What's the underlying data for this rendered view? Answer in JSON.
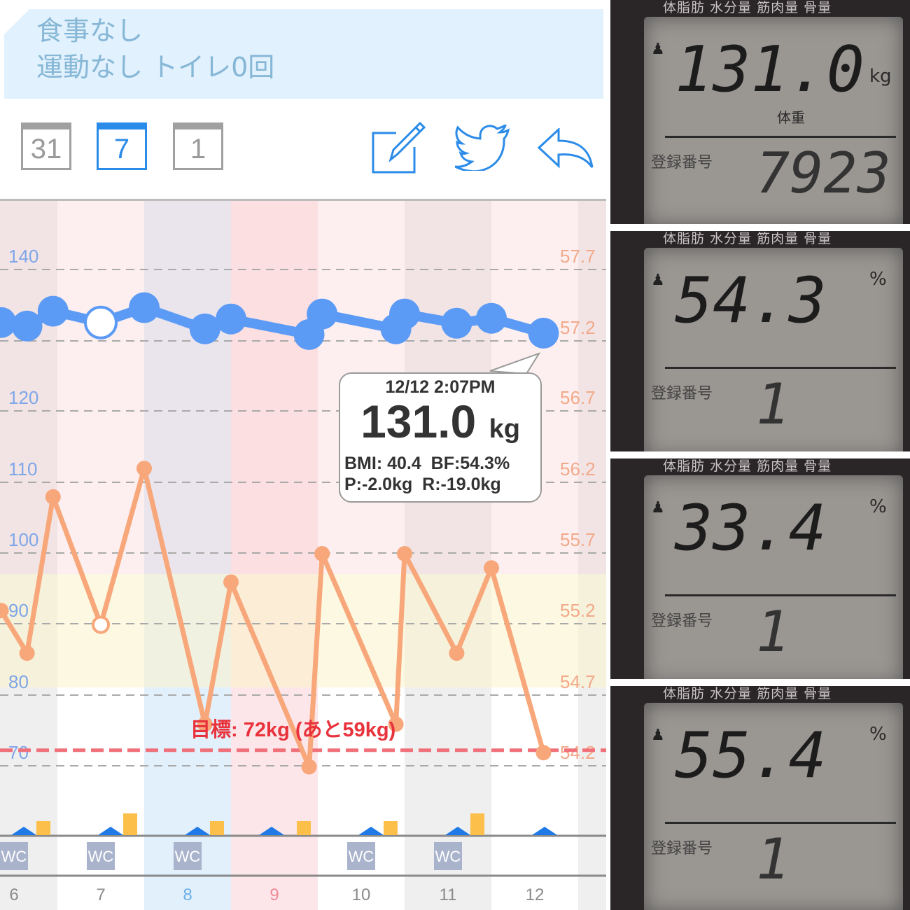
{
  "memo": {
    "line1": "食事なし",
    "line2": "運動なし トイレ0回"
  },
  "toolbar": {
    "calendars": [
      {
        "label": "31",
        "icon": "calendar-month-icon",
        "active": false
      },
      {
        "label": "7",
        "icon": "calendar-week-icon",
        "active": true
      },
      {
        "label": "1",
        "icon": "calendar-day-icon",
        "active": false
      }
    ],
    "actions": [
      "edit-icon",
      "twitter-icon",
      "reply-icon"
    ],
    "accent": "#2b8be8"
  },
  "chart_data": {
    "type": "line",
    "categories": [
      "6",
      "7",
      "8",
      "9",
      "10",
      "11",
      "12"
    ],
    "category_colors": [
      "#8a8a8a",
      "#8a8a8a",
      "#6aaee8",
      "#f08a96",
      "#8a8a8a",
      "#8a8a8a",
      "#8a8a8a"
    ],
    "left_axis": {
      "ticks": [
        "140",
        "120",
        "110",
        "100",
        "90",
        "80",
        "70"
      ],
      "range": [
        70,
        140
      ],
      "color": "#7fa6e8"
    },
    "right_axis": {
      "ticks": [
        "57.7",
        "57.2",
        "56.7",
        "56.2",
        "55.7",
        "55.2",
        "54.7",
        "54.2"
      ],
      "range": [
        54.2,
        57.7
      ],
      "color": "#f2a98a"
    },
    "series": [
      {
        "axis": "left",
        "color": "#5c9bf5",
        "x": [
          5.85,
          6.15,
          6.45,
          7.0,
          7.5,
          8.2,
          8.5,
          9.4,
          9.55,
          10.4,
          10.5,
          11.1,
          11.5,
          12.1
        ],
        "values": [
          132.5,
          132.0,
          134.1,
          132.5,
          134.6,
          131.6,
          133.0,
          130.8,
          133.7,
          131.6,
          133.7,
          132.4,
          133.1,
          131.0
        ],
        "open_index": 3
      },
      {
        "axis": "right",
        "color": "#f7a77a",
        "x": [
          5.85,
          6.15,
          6.45,
          7.0,
          7.5,
          8.2,
          8.5,
          9.4,
          9.55,
          10.4,
          10.5,
          11.1,
          11.5,
          12.1
        ],
        "values": [
          55.3,
          55.0,
          56.1,
          55.2,
          56.3,
          54.5,
          55.5,
          54.2,
          55.7,
          54.5,
          55.7,
          55.0,
          55.6,
          54.3
        ],
        "open_index": 3
      }
    ],
    "goal": {
      "value": 72,
      "label": "目標: 72kg (あと59kg)",
      "color": "#f0707a"
    },
    "wc_label": "WC",
    "wc_days": [
      "6",
      "7",
      "8",
      "10",
      "11"
    ],
    "activity_markers": [
      "6",
      "7",
      "8",
      "9",
      "10",
      "11",
      "12"
    ],
    "meal_bars": [
      {
        "day": "6",
        "level": 1
      },
      {
        "day": "7",
        "level": 2
      },
      {
        "day": "8",
        "level": 1
      },
      {
        "day": "9",
        "level": 1
      },
      {
        "day": "10",
        "level": 1
      },
      {
        "day": "11",
        "level": 2
      }
    ]
  },
  "tooltip": {
    "datetime": "12/12 2:07PM",
    "weight": "131.0",
    "unit": "kg",
    "line1": "BMI: 40.4  BF:54.3%",
    "line2": "P:-2.0kg  R:-19.0kg"
  },
  "photos": [
    {
      "header": "体脂肪 水分量 筋肉量 骨量",
      "value": "131.0",
      "unit": "kg",
      "sub": "体重",
      "reg_label": "登録番号",
      "reg": "7923"
    },
    {
      "header": "体脂肪 水分量 筋肉量 骨量",
      "value": "54.3",
      "unit": "%",
      "sub": "",
      "reg_label": "登録番号",
      "reg": "1"
    },
    {
      "header": "体脂肪 水分量 筋肉量 骨量",
      "value": "33.4",
      "unit": "%",
      "sub": "",
      "reg_label": "登録番号",
      "reg": "1"
    },
    {
      "header": "体脂肪 水分量 筋肉量 骨量",
      "value": "55.4",
      "unit": "%",
      "sub": "",
      "reg_label": "登録番号",
      "reg": "1"
    }
  ]
}
